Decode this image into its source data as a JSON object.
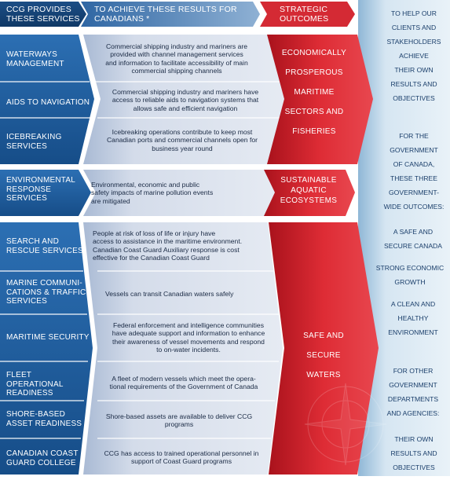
{
  "headers": {
    "services": "CCG PROVIDES\nTHESE SERVICES",
    "results": "TO ACHIEVE THESE RESULTS FOR\nCANADIANS *",
    "outcomes": "STRATEGIC\nOUTCOMES"
  },
  "services": [
    "WATERWAYS\nMANAGEMENT",
    "AIDS TO NAVIGATION",
    "ICEBREAKING\nSERVICES",
    "ENVIRONMENTAL\nRESPONSE\nSERVICES",
    "SEARCH AND\nRESCUE SERVICES",
    "MARINE COMMUNI-\nCATIONS & TRAFFIC\nSERVICES",
    "MARITIME SECURITY",
    "FLEET OPERATIONAL\nREADINESS",
    "SHORE-BASED\nASSET READINESS",
    "CANADIAN COAST\nGUARD COLLEGE"
  ],
  "results": [
    "Commercial shipping industry and mariners are\nprovided with channel management services\nand information to facilitate accessibility of main\ncommercial shipping channels",
    "Commercial shipping industry and mariners have\naccess to reliable aids to navigation systems that\nallows safe and efficient navigation",
    "Icebreaking operations contribute to keep most\nCanadian ports and commercial channels open for\nbusiness year round",
    "Environmental, economic and public\nsafety impacts of marine pollution events\nare mitigated",
    "People at risk of loss of life or injury have\naccess to assistance in the maritime environment.\nCanadian Coast Guard Auxiliary response is cost\neffective for the Canadian Coast Guard",
    "Vessels can transit Canadian waters safely",
    "Federal enforcement and intelligence communities\nhave adequate support and information to enhance\ntheir awareness of vessel movements and respond\nto on-water incidents.",
    "A fleet of modern vessels which meet the opera-\ntional requirements of the Government of Canada",
    "Shore-based assets are available to deliver CCG\nprograms",
    "CCG has access to trained operational personnel in\nsupport of Coast Guard programs"
  ],
  "outcomes": [
    "ECONOMICALLY\nPROSPEROUS\nMARITIME\nSECTORS AND\nFISHERIES",
    "SUSTAINABLE\nAQUATIC\nECOSYSTEMS",
    "SAFE AND\nSECURE\nWATERS"
  ],
  "side": [
    "TO HELP OUR\nCLIENTS AND\nSTAKEHOLDERS\nACHIEVE\nTHEIR OWN\nRESULTS  AND\nOBJECTIVES",
    "FOR THE\nGOVERNMENT\nOF CANADA,\nTHESE THREE\nGOVERNMENT-\nWIDE OUTCOMES:",
    "A SAFE AND\nSECURE CANADA",
    "STRONG ECONOMIC\nGROWTH",
    "A CLEAN AND\nHEALTHY\nENVIRONMENT",
    "FOR OTHER\nGOVERNMENT\nDEPARTMENTS\nAND AGENCIES:",
    "THEIR OWN\nRESULTS AND\nOBJECTIVES"
  ],
  "colors": {
    "service_blue": "#1f5f9e",
    "result_blue": "#c9d3e4",
    "outcome_red": "#d92a33",
    "side_panel": "#cfe0ee",
    "side_text": "#1b3f6b"
  }
}
